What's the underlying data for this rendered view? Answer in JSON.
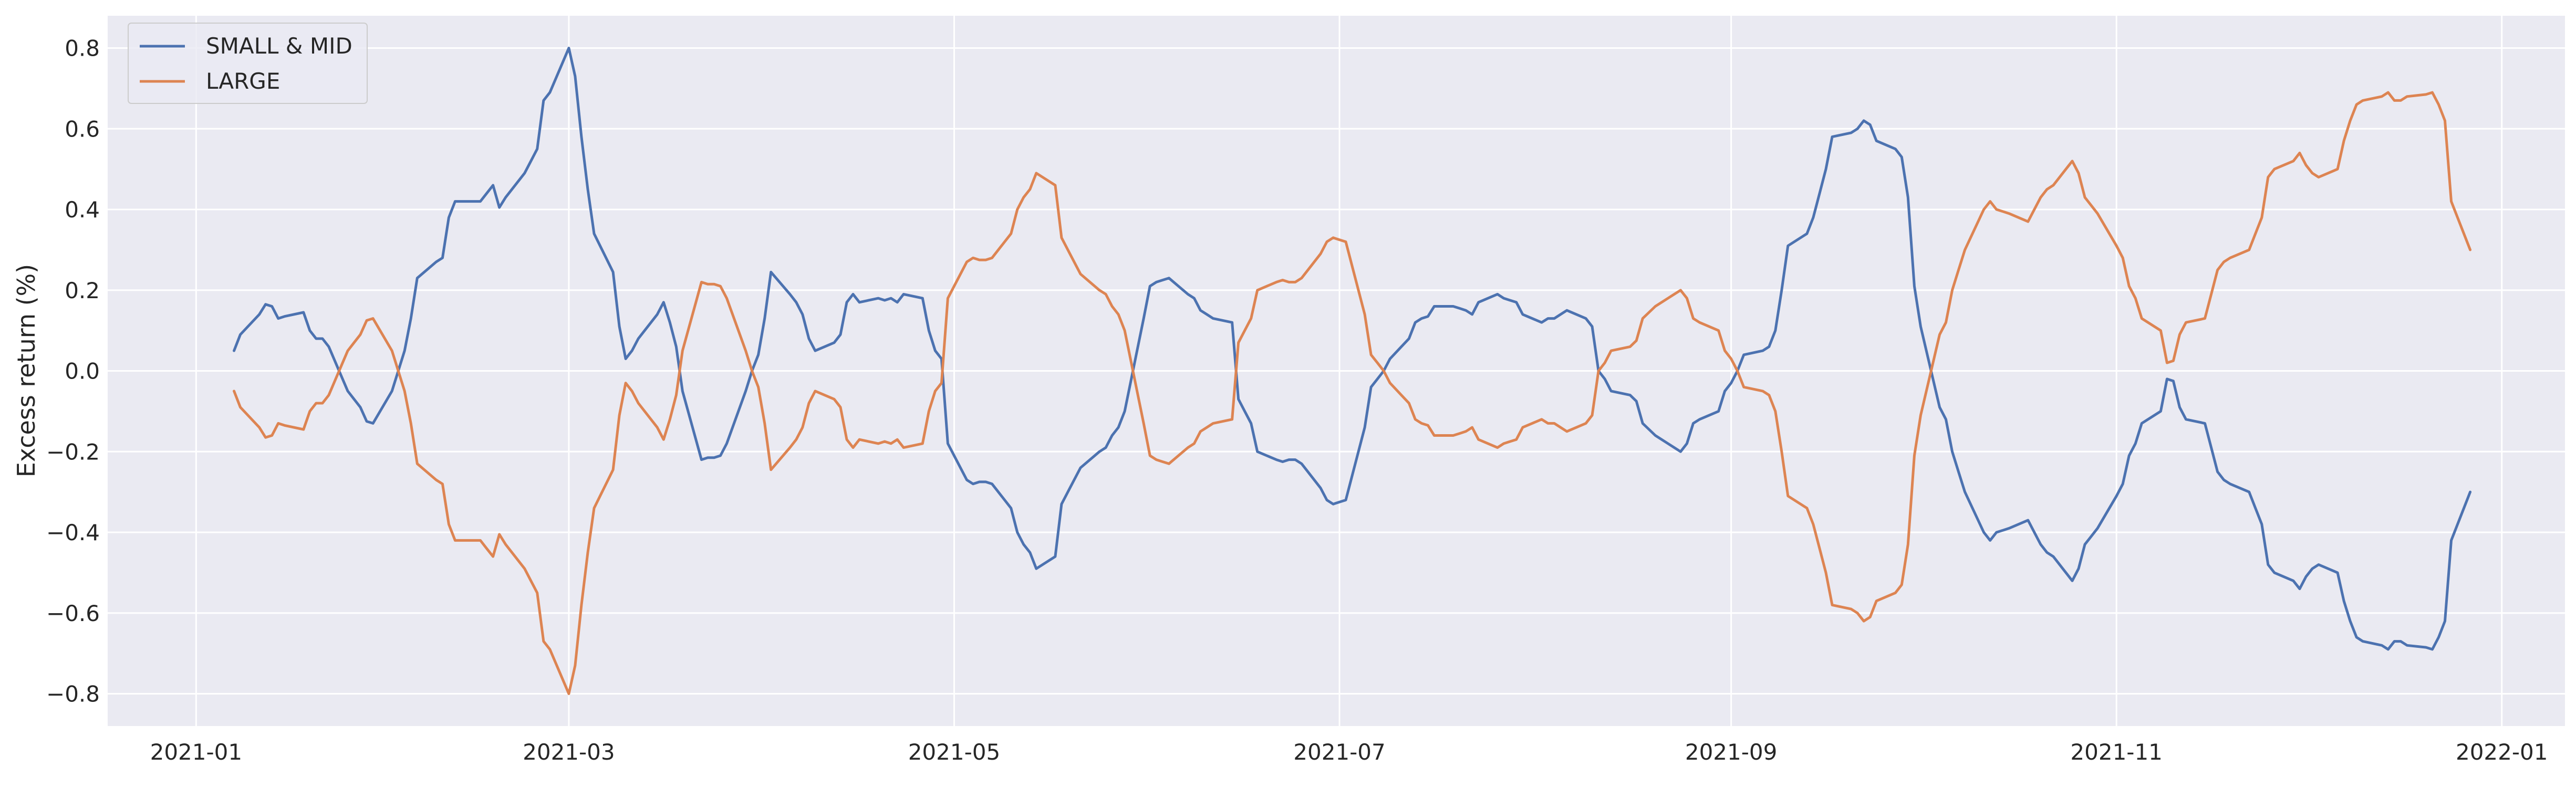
{
  "chart_data": {
    "type": "line",
    "title": "",
    "xlabel": "",
    "ylabel": "Excess return (%)",
    "grid": true,
    "legend_position": "top-left",
    "ylim": [
      -0.88,
      0.88
    ],
    "xlim": [
      "2020-12-18",
      "2022-01-11"
    ],
    "x_ticks": [
      "2021-01-01",
      "2021-03-01",
      "2021-05-01",
      "2021-07-01",
      "2021-09-01",
      "2021-11-01",
      "2022-01-01"
    ],
    "x_tick_labels": [
      "2021-01",
      "2021-03",
      "2021-05",
      "2021-07",
      "2021-09",
      "2021-11",
      "2022-01"
    ],
    "y_ticks": [
      -0.8,
      -0.6,
      -0.4,
      -0.2,
      0.0,
      0.2,
      0.4,
      0.6,
      0.8
    ],
    "y_tick_labels": [
      "−0.8",
      "−0.6",
      "−0.4",
      "−0.2",
      "0.0",
      "0.2",
      "0.4",
      "0.6",
      "0.8"
    ],
    "x": [
      "2021-01-07",
      "2021-01-08",
      "2021-01-11",
      "2021-01-12",
      "2021-01-13",
      "2021-01-14",
      "2021-01-15",
      "2021-01-18",
      "2021-01-19",
      "2021-01-20",
      "2021-01-21",
      "2021-01-22",
      "2021-01-25",
      "2021-01-26",
      "2021-01-27",
      "2021-01-28",
      "2021-01-29",
      "2021-02-01",
      "2021-02-02",
      "2021-02-03",
      "2021-02-04",
      "2021-02-05",
      "2021-02-08",
      "2021-02-09",
      "2021-02-10",
      "2021-02-11",
      "2021-02-15",
      "2021-02-16",
      "2021-02-17",
      "2021-02-18",
      "2021-02-19",
      "2021-02-22",
      "2021-02-23",
      "2021-02-24",
      "2021-02-25",
      "2021-02-26",
      "2021-03-01",
      "2021-03-02",
      "2021-03-03",
      "2021-03-04",
      "2021-03-05",
      "2021-03-08",
      "2021-03-09",
      "2021-03-10",
      "2021-03-11",
      "2021-03-12",
      "2021-03-15",
      "2021-03-16",
      "2021-03-17",
      "2021-03-18",
      "2021-03-19",
      "2021-03-22",
      "2021-03-23",
      "2021-03-24",
      "2021-03-25",
      "2021-03-26",
      "2021-03-29",
      "2021-03-30",
      "2021-03-31",
      "2021-04-01",
      "2021-04-02",
      "2021-04-05",
      "2021-04-06",
      "2021-04-07",
      "2021-04-08",
      "2021-04-09",
      "2021-04-12",
      "2021-04-13",
      "2021-04-14",
      "2021-04-15",
      "2021-04-16",
      "2021-04-19",
      "2021-04-20",
      "2021-04-21",
      "2021-04-22",
      "2021-04-23",
      "2021-04-26",
      "2021-04-27",
      "2021-04-28",
      "2021-04-29",
      "2021-04-30",
      "2021-05-03",
      "2021-05-04",
      "2021-05-05",
      "2021-05-06",
      "2021-05-07",
      "2021-05-10",
      "2021-05-11",
      "2021-05-12",
      "2021-05-13",
      "2021-05-14",
      "2021-05-17",
      "2021-05-18",
      "2021-05-19",
      "2021-05-20",
      "2021-05-21",
      "2021-05-24",
      "2021-05-25",
      "2021-05-26",
      "2021-05-27",
      "2021-05-28",
      "2021-05-31",
      "2021-06-01",
      "2021-06-02",
      "2021-06-03",
      "2021-06-04",
      "2021-06-07",
      "2021-06-08",
      "2021-06-09",
      "2021-06-10",
      "2021-06-11",
      "2021-06-14",
      "2021-06-15",
      "2021-06-16",
      "2021-06-17",
      "2021-06-18",
      "2021-06-21",
      "2021-06-22",
      "2021-06-23",
      "2021-06-24",
      "2021-06-25",
      "2021-06-28",
      "2021-06-29",
      "2021-06-30",
      "2021-07-01",
      "2021-07-02",
      "2021-07-05",
      "2021-07-06",
      "2021-07-07",
      "2021-07-08",
      "2021-07-09",
      "2021-07-12",
      "2021-07-13",
      "2021-07-14",
      "2021-07-15",
      "2021-07-16",
      "2021-07-19",
      "2021-07-20",
      "2021-07-21",
      "2021-07-22",
      "2021-07-23",
      "2021-07-26",
      "2021-07-27",
      "2021-07-28",
      "2021-07-29",
      "2021-07-30",
      "2021-08-02",
      "2021-08-03",
      "2021-08-04",
      "2021-08-05",
      "2021-08-06",
      "2021-08-09",
      "2021-08-10",
      "2021-08-11",
      "2021-08-12",
      "2021-08-13",
      "2021-08-16",
      "2021-08-17",
      "2021-08-18",
      "2021-08-19",
      "2021-08-20",
      "2021-08-23",
      "2021-08-24",
      "2021-08-25",
      "2021-08-26",
      "2021-08-27",
      "2021-08-30",
      "2021-08-31",
      "2021-09-01",
      "2021-09-02",
      "2021-09-03",
      "2021-09-06",
      "2021-09-07",
      "2021-09-08",
      "2021-09-09",
      "2021-09-10",
      "2021-09-13",
      "2021-09-14",
      "2021-09-15",
      "2021-09-16",
      "2021-09-17",
      "2021-09-20",
      "2021-09-21",
      "2021-09-22",
      "2021-09-23",
      "2021-09-24",
      "2021-09-27",
      "2021-09-28",
      "2021-09-29",
      "2021-09-30",
      "2021-10-01",
      "2021-10-04",
      "2021-10-05",
      "2021-10-06",
      "2021-10-07",
      "2021-10-08",
      "2021-10-11",
      "2021-10-12",
      "2021-10-13",
      "2021-10-14",
      "2021-10-15",
      "2021-10-18",
      "2021-10-19",
      "2021-10-20",
      "2021-10-21",
      "2021-10-22",
      "2021-10-25",
      "2021-10-26",
      "2021-10-27",
      "2021-10-28",
      "2021-10-29",
      "2021-11-01",
      "2021-11-02",
      "2021-11-03",
      "2021-11-04",
      "2021-11-05",
      "2021-11-08",
      "2021-11-09",
      "2021-11-10",
      "2021-11-11",
      "2021-11-12",
      "2021-11-15",
      "2021-11-16",
      "2021-11-17",
      "2021-11-18",
      "2021-11-19",
      "2021-11-22",
      "2021-11-23",
      "2021-11-24",
      "2021-11-25",
      "2021-11-26",
      "2021-11-29",
      "2021-11-30",
      "2021-12-01",
      "2021-12-02",
      "2021-12-03",
      "2021-12-06",
      "2021-12-07",
      "2021-12-08",
      "2021-12-09",
      "2021-12-10",
      "2021-12-13",
      "2021-12-14",
      "2021-12-15",
      "2021-12-16",
      "2021-12-17",
      "2021-12-20",
      "2021-12-21",
      "2021-12-22",
      "2021-12-23",
      "2021-12-24",
      "2021-12-27"
    ],
    "series": [
      {
        "name": "SMALL & MID",
        "color": "#4c72b0",
        "values": [
          0.05,
          0.09,
          0.14,
          0.165,
          0.16,
          0.13,
          0.135,
          0.145,
          0.1,
          0.08,
          0.08,
          0.06,
          -0.05,
          -0.07,
          -0.09,
          -0.125,
          -0.13,
          -0.05,
          0.0,
          0.05,
          0.13,
          0.23,
          0.27,
          0.28,
          0.38,
          0.42,
          0.42,
          0.44,
          0.46,
          0.405,
          0.43,
          0.49,
          0.52,
          0.55,
          0.67,
          0.69,
          0.8,
          0.73,
          0.58,
          0.45,
          0.34,
          0.245,
          0.11,
          0.03,
          0.05,
          0.08,
          0.14,
          0.17,
          0.12,
          0.06,
          -0.05,
          -0.22,
          -0.215,
          -0.215,
          -0.21,
          -0.18,
          -0.05,
          0.0,
          0.04,
          0.13,
          0.245,
          0.19,
          0.17,
          0.14,
          0.08,
          0.05,
          0.07,
          0.09,
          0.17,
          0.19,
          0.17,
          0.18,
          0.175,
          0.18,
          0.17,
          0.19,
          0.18,
          0.1,
          0.05,
          0.03,
          -0.18,
          -0.27,
          -0.28,
          -0.275,
          -0.275,
          -0.28,
          -0.34,
          -0.4,
          -0.43,
          -0.45,
          -0.49,
          -0.46,
          -0.33,
          -0.3,
          -0.27,
          -0.24,
          -0.2,
          -0.19,
          -0.16,
          -0.14,
          -0.1,
          0.13,
          0.21,
          0.22,
          0.225,
          0.23,
          0.19,
          0.18,
          0.15,
          0.14,
          0.13,
          0.12,
          -0.07,
          -0.1,
          -0.13,
          -0.2,
          -0.22,
          -0.225,
          -0.22,
          -0.22,
          -0.23,
          -0.29,
          -0.32,
          -0.33,
          -0.325,
          -0.32,
          -0.14,
          -0.04,
          -0.02,
          0.0,
          0.03,
          0.08,
          0.12,
          0.13,
          0.135,
          0.16,
          0.16,
          0.155,
          0.15,
          0.14,
          0.17,
          0.19,
          0.18,
          0.175,
          0.17,
          0.14,
          0.12,
          0.13,
          0.13,
          0.14,
          0.15,
          0.13,
          0.11,
          0.0,
          -0.02,
          -0.05,
          -0.06,
          -0.075,
          -0.13,
          -0.145,
          -0.16,
          -0.19,
          -0.2,
          -0.18,
          -0.13,
          -0.12,
          -0.1,
          -0.05,
          -0.03,
          0.0,
          0.04,
          0.05,
          0.06,
          0.1,
          0.2,
          0.31,
          0.34,
          0.38,
          0.44,
          0.5,
          0.58,
          0.59,
          0.6,
          0.62,
          0.61,
          0.57,
          0.55,
          0.53,
          0.43,
          0.21,
          0.11,
          -0.09,
          -0.12,
          -0.2,
          -0.25,
          -0.3,
          -0.4,
          -0.42,
          -0.4,
          -0.395,
          -0.39,
          -0.37,
          -0.4,
          -0.43,
          -0.45,
          -0.46,
          -0.52,
          -0.49,
          -0.43,
          -0.41,
          -0.39,
          -0.31,
          -0.28,
          -0.21,
          -0.18,
          -0.13,
          -0.1,
          -0.02,
          -0.025,
          -0.09,
          -0.12,
          -0.13,
          -0.19,
          -0.25,
          -0.27,
          -0.28,
          -0.3,
          -0.34,
          -0.38,
          -0.48,
          -0.5,
          -0.52,
          -0.54,
          -0.51,
          -0.49,
          -0.48,
          -0.5,
          -0.57,
          -0.62,
          -0.66,
          -0.67,
          -0.68,
          -0.69,
          -0.67,
          -0.67,
          -0.68,
          -0.685,
          -0.69,
          -0.66,
          -0.62,
          -0.42,
          -0.3
        ]
      },
      {
        "name": "LARGE",
        "color": "#dd8452",
        "values": [
          -0.05,
          -0.09,
          -0.14,
          -0.165,
          -0.16,
          -0.13,
          -0.135,
          -0.145,
          -0.1,
          -0.08,
          -0.08,
          -0.06,
          0.05,
          0.07,
          0.09,
          0.125,
          0.13,
          0.05,
          0.0,
          -0.05,
          -0.13,
          -0.23,
          -0.27,
          -0.28,
          -0.38,
          -0.42,
          -0.42,
          -0.44,
          -0.46,
          -0.405,
          -0.43,
          -0.49,
          -0.52,
          -0.55,
          -0.67,
          -0.69,
          -0.8,
          -0.73,
          -0.58,
          -0.45,
          -0.34,
          -0.245,
          -0.11,
          -0.03,
          -0.05,
          -0.08,
          -0.14,
          -0.17,
          -0.12,
          -0.06,
          0.05,
          0.22,
          0.215,
          0.215,
          0.21,
          0.18,
          0.05,
          0.0,
          -0.04,
          -0.13,
          -0.245,
          -0.19,
          -0.17,
          -0.14,
          -0.08,
          -0.05,
          -0.07,
          -0.09,
          -0.17,
          -0.19,
          -0.17,
          -0.18,
          -0.175,
          -0.18,
          -0.17,
          -0.19,
          -0.18,
          -0.1,
          -0.05,
          -0.03,
          0.18,
          0.27,
          0.28,
          0.275,
          0.275,
          0.28,
          0.34,
          0.4,
          0.43,
          0.45,
          0.49,
          0.46,
          0.33,
          0.3,
          0.27,
          0.24,
          0.2,
          0.19,
          0.16,
          0.14,
          0.1,
          -0.13,
          -0.21,
          -0.22,
          -0.225,
          -0.23,
          -0.19,
          -0.18,
          -0.15,
          -0.14,
          -0.13,
          -0.12,
          0.07,
          0.1,
          0.13,
          0.2,
          0.22,
          0.225,
          0.22,
          0.22,
          0.23,
          0.29,
          0.32,
          0.33,
          0.325,
          0.32,
          0.14,
          0.04,
          0.02,
          0.0,
          -0.03,
          -0.08,
          -0.12,
          -0.13,
          -0.135,
          -0.16,
          -0.16,
          -0.155,
          -0.15,
          -0.14,
          -0.17,
          -0.19,
          -0.18,
          -0.175,
          -0.17,
          -0.14,
          -0.12,
          -0.13,
          -0.13,
          -0.14,
          -0.15,
          -0.13,
          -0.11,
          0.0,
          0.02,
          0.05,
          0.06,
          0.075,
          0.13,
          0.145,
          0.16,
          0.19,
          0.2,
          0.18,
          0.13,
          0.12,
          0.1,
          0.05,
          0.03,
          0.0,
          -0.04,
          -0.05,
          -0.06,
          -0.1,
          -0.2,
          -0.31,
          -0.34,
          -0.38,
          -0.44,
          -0.5,
          -0.58,
          -0.59,
          -0.6,
          -0.62,
          -0.61,
          -0.57,
          -0.55,
          -0.53,
          -0.43,
          -0.21,
          -0.11,
          0.09,
          0.12,
          0.2,
          0.25,
          0.3,
          0.4,
          0.42,
          0.4,
          0.395,
          0.39,
          0.37,
          0.4,
          0.43,
          0.45,
          0.46,
          0.52,
          0.49,
          0.43,
          0.41,
          0.39,
          0.31,
          0.28,
          0.21,
          0.18,
          0.13,
          0.1,
          0.02,
          0.025,
          0.09,
          0.12,
          0.13,
          0.19,
          0.25,
          0.27,
          0.28,
          0.3,
          0.34,
          0.38,
          0.48,
          0.5,
          0.52,
          0.54,
          0.51,
          0.49,
          0.48,
          0.5,
          0.57,
          0.62,
          0.66,
          0.67,
          0.68,
          0.69,
          0.67,
          0.67,
          0.68,
          0.685,
          0.69,
          0.66,
          0.62,
          0.42,
          0.3
        ]
      }
    ]
  }
}
